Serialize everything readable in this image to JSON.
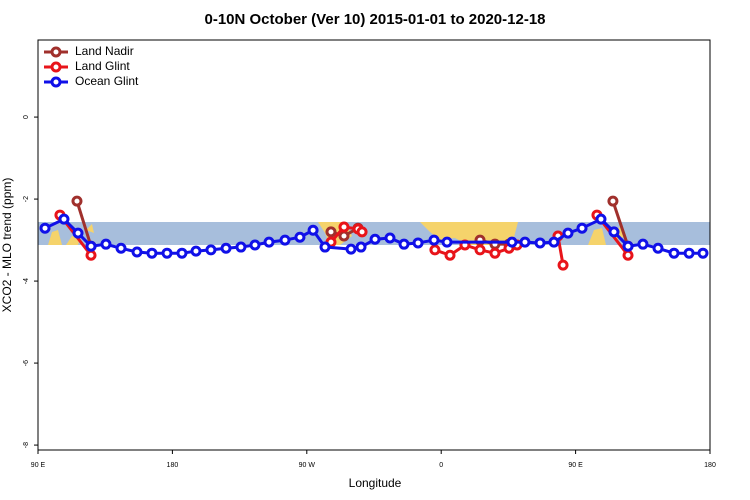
{
  "chart_data": {
    "type": "line",
    "title": "0-10N October (Ver 10)   2015-01-01 to 2020-12-18",
    "x_label": "Longitude",
    "y_label": "XCO2 - MLO trend (ppm)",
    "xlim": [
      90,
      540
    ],
    "ylim": [
      -8.12,
      1.88
    ],
    "xticks": [
      {
        "value": 90,
        "label": "90 E"
      },
      180,
      {
        "value": 270,
        "label": "90 W"
      },
      {
        "value": 360,
        "label": "0"
      },
      {
        "value": 450,
        "label": "90 E"
      },
      {
        "value": 540,
        "label": "180"
      }
    ],
    "yticks": [
      0,
      -2,
      -4,
      -6,
      -8
    ],
    "legend": "top-left",
    "series": [
      {
        "name": "Land Nadir",
        "color": "#a0302c",
        "x": [
          116.1,
          125.5,
          null,
          286.2,
          294.9,
          304.3,
          null,
          386.0,
          396.0,
          405.4,
          null,
          475.0,
          485.1
        ],
        "values": [
          -2.05,
          -3.15,
          null,
          -2.8,
          -2.9,
          -2.71,
          null,
          -3.0,
          -3.1,
          -3.1,
          null,
          -2.05,
          -3.15
        ]
      },
      {
        "name": "Land Glint",
        "color": "#e8141a",
        "x": [
          104.7,
          125.5,
          null,
          286.2,
          294.9,
          304.3,
          307.0,
          null,
          355.8,
          365.9,
          375.9,
          386.0,
          396.0,
          405.4,
          410.8,
          null,
          438.2,
          441.6,
          null,
          464.3,
          485.1
        ],
        "values": [
          -2.39,
          -3.37,
          null,
          -3.05,
          -2.68,
          -2.73,
          -2.8,
          null,
          -3.24,
          -3.37,
          -3.12,
          -3.24,
          -3.32,
          -3.2,
          -3.12,
          null,
          -2.9,
          -3.61,
          null,
          -2.39,
          -3.37
        ]
      },
      {
        "name": "Ocean Glint",
        "color": "#1010e8",
        "x": [
          94.7,
          107.4,
          116.8,
          125.5,
          135.5,
          145.6,
          156.3,
          166.3,
          176.4,
          186.4,
          195.8,
          205.8,
          215.9,
          225.9,
          235.3,
          244.7,
          255.4,
          265.4,
          274.2,
          282.2,
          299.6,
          306.3,
          315.7,
          325.7,
          335.1,
          344.5,
          355.2,
          363.9,
          407.4,
          416.1,
          426.2,
          435.5,
          444.9,
          454.3,
          467.0,
          475.7,
          485.1,
          495.1,
          505.2,
          515.9,
          526.0,
          535.3
        ],
        "values": [
          -2.71,
          -2.49,
          -2.83,
          -3.15,
          -3.1,
          -3.2,
          -3.29,
          -3.32,
          -3.32,
          -3.32,
          -3.27,
          -3.24,
          -3.2,
          -3.17,
          -3.12,
          -3.05,
          -3.0,
          -2.93,
          -2.76,
          -3.17,
          -3.22,
          -3.17,
          -2.98,
          -2.95,
          -3.1,
          -3.07,
          -3.0,
          -3.05,
          -3.05,
          -3.05,
          -3.07,
          -3.05,
          -2.83,
          -2.71,
          -2.49,
          -2.8,
          -3.15,
          -3.1,
          -3.2,
          -3.32,
          -3.32,
          -3.32
        ]
      }
    ]
  }
}
